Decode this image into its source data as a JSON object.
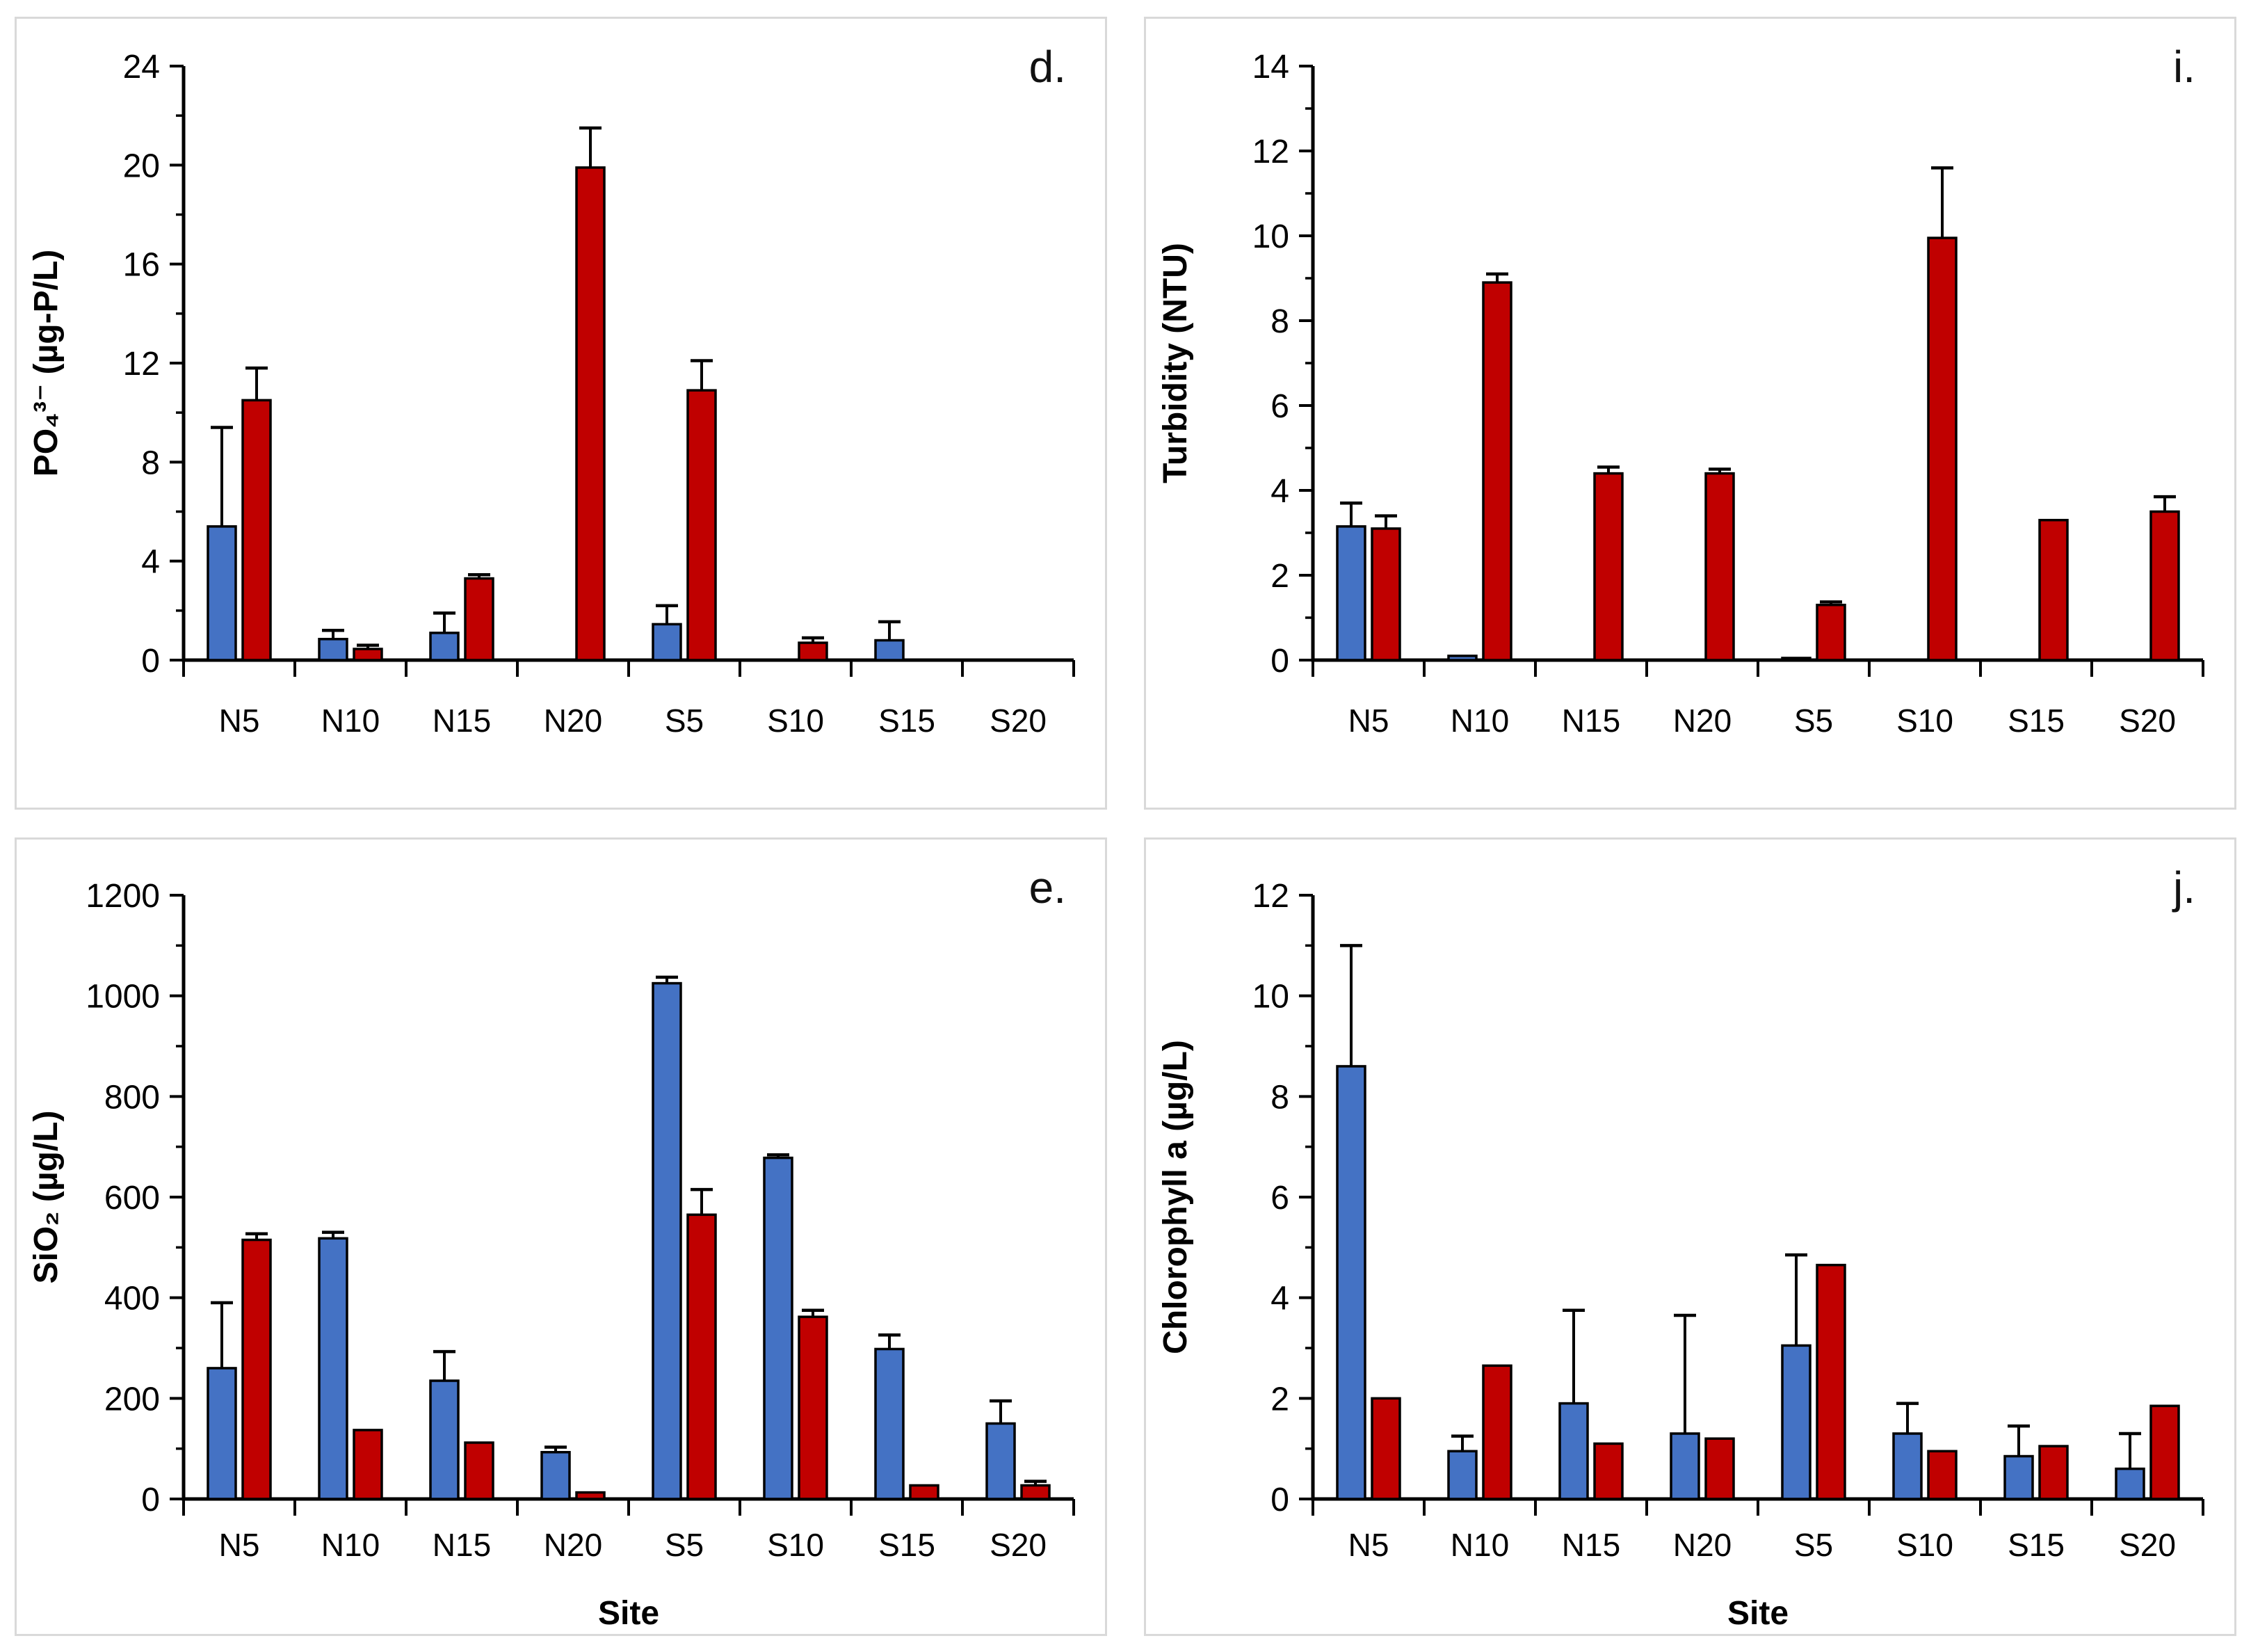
{
  "figure": {
    "background": "#ffffff",
    "panel_border_color": "#d9d9d9"
  },
  "colors": {
    "bar_blue": "#4472C4",
    "bar_red": "#C00000",
    "bar_outline": "#000000",
    "axis": "#000000"
  },
  "chart_data": [
    {
      "id": "d",
      "panel_label": "d.",
      "type": "bar",
      "title": "",
      "ylabel": "PO₄³⁻ (µg-P/L)",
      "xlabel": "",
      "ylim": [
        0,
        24
      ],
      "ytick_step": 4,
      "ytick_minor_step": 2,
      "grid": false,
      "legend": "none",
      "categories": [
        "N5",
        "N10",
        "N15",
        "N20",
        "S5",
        "S10",
        "S15",
        "S20"
      ],
      "series": [
        {
          "name": "blue",
          "color": "#4472C4",
          "values": [
            5.4,
            0.85,
            1.1,
            0,
            1.45,
            0,
            0.8,
            0
          ],
          "errors_plus": [
            4.0,
            0.35,
            0.8,
            0,
            0.75,
            0,
            0.75,
            0
          ]
        },
        {
          "name": "red",
          "color": "#C00000",
          "values": [
            10.5,
            0.45,
            3.3,
            19.9,
            10.9,
            0.7,
            0,
            0
          ],
          "errors_plus": [
            1.3,
            0.15,
            0.15,
            1.6,
            1.2,
            0.2,
            0,
            0
          ]
        }
      ]
    },
    {
      "id": "i",
      "panel_label": "i.",
      "type": "bar",
      "title": "",
      "ylabel": "Turbidity (NTU)",
      "xlabel": "",
      "ylim": [
        0,
        14
      ],
      "ytick_step": 2,
      "ytick_minor_step": 1,
      "grid": false,
      "legend": "none",
      "categories": [
        "N5",
        "N10",
        "N15",
        "N20",
        "S5",
        "S10",
        "S15",
        "S20"
      ],
      "series": [
        {
          "name": "blue",
          "color": "#4472C4",
          "values": [
            3.15,
            0.1,
            0,
            0,
            0.05,
            0,
            0,
            0
          ],
          "errors_plus": [
            0.55,
            0,
            0,
            0,
            0,
            0,
            0,
            0
          ]
        },
        {
          "name": "red",
          "color": "#C00000",
          "values": [
            3.1,
            8.9,
            4.4,
            4.4,
            1.3,
            9.95,
            3.3,
            3.5
          ],
          "errors_plus": [
            0.3,
            0.2,
            0.15,
            0.1,
            0.07,
            1.65,
            0,
            0.35
          ]
        }
      ]
    },
    {
      "id": "e",
      "panel_label": "e.",
      "type": "bar",
      "title": "",
      "ylabel": "SiO₂ (µg/L)",
      "xlabel": "Site",
      "ylim": [
        0,
        1200
      ],
      "ytick_step": 200,
      "ytick_minor_step": 100,
      "grid": false,
      "legend": "none",
      "categories": [
        "N5",
        "N10",
        "N15",
        "N20",
        "S5",
        "S10",
        "S15",
        "S20"
      ],
      "series": [
        {
          "name": "blue",
          "color": "#4472C4",
          "values": [
            260,
            518,
            235,
            93,
            1025,
            678,
            298,
            150
          ],
          "errors_plus": [
            130,
            12,
            58,
            10,
            12,
            6,
            28,
            45
          ]
        },
        {
          "name": "red",
          "color": "#C00000",
          "values": [
            515,
            137,
            112,
            13,
            565,
            362,
            27,
            27
          ],
          "errors_plus": [
            12,
            0,
            0,
            0,
            50,
            13,
            0,
            8
          ]
        }
      ]
    },
    {
      "id": "j",
      "panel_label": "j.",
      "type": "bar",
      "title": "",
      "ylabel": "Chlorophyll a (µg/L)",
      "xlabel": "Site",
      "ylim": [
        0,
        12
      ],
      "ytick_step": 2,
      "ytick_minor_step": 1,
      "grid": false,
      "legend": "none",
      "categories": [
        "N5",
        "N10",
        "N15",
        "N20",
        "S5",
        "S10",
        "S15",
        "S20"
      ],
      "series": [
        {
          "name": "blue",
          "color": "#4472C4",
          "values": [
            8.6,
            0.95,
            1.9,
            1.3,
            3.05,
            1.3,
            0.85,
            0.6
          ],
          "errors_plus": [
            2.4,
            0.3,
            1.85,
            2.35,
            1.8,
            0.6,
            0.6,
            0.7
          ]
        },
        {
          "name": "red",
          "color": "#C00000",
          "values": [
            2.0,
            2.65,
            1.1,
            1.2,
            4.65,
            0.95,
            1.05,
            1.85
          ],
          "errors_plus": [
            0,
            0,
            0,
            0,
            0,
            0,
            0,
            0
          ]
        }
      ]
    }
  ]
}
